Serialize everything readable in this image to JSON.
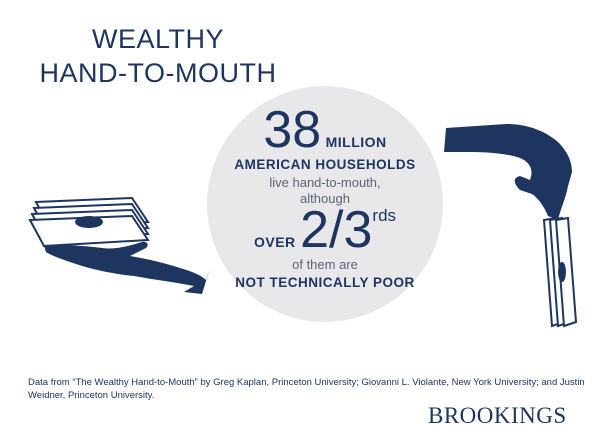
{
  "title": {
    "line1": "WEALTHY",
    "line2": "HAND-TO-MOUTH"
  },
  "stat": {
    "number": "38",
    "unit": "MILLION",
    "households": "AMERICAN HOUSEHOLDS",
    "line3": "live hand-to-mouth,",
    "line4": "although",
    "over": "OVER",
    "fraction": "2/3",
    "suffix": "rds",
    "line6": "of them are",
    "line7": "NOT TECHNICALLY POOR"
  },
  "footnote": "Data from “The Wealthy Hand-to-Mouth” by Greg Kaplan, Princeton University; Giovanni L. Violante, New York University; and Justin Weidner, Princeton University.",
  "logo": "BROOKINGS",
  "colors": {
    "navy": "#1e3560",
    "circle": "#e8e8ea"
  },
  "icons": [
    "hand-giving-money-icon",
    "hand-receiving-money-icon"
  ]
}
